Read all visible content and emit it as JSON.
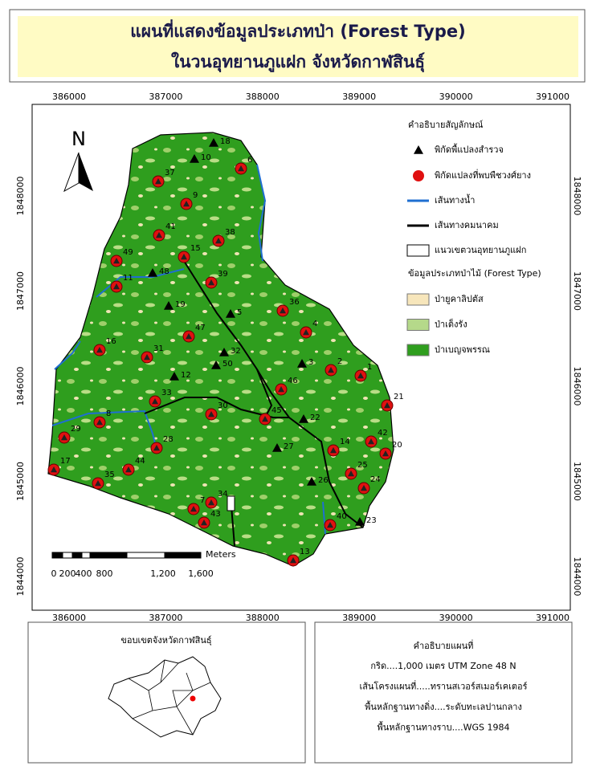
{
  "header": {
    "title": [
      "แผนที่แสดงข้อมูลประเภทป่า (Forest Type)",
      "ในวนอุทยานภูแฝก จังหวัดกาฬสินธุ์"
    ]
  },
  "map": {
    "x_labels": [
      386000,
      387000,
      388000,
      389000,
      390000,
      391000
    ],
    "y_labels": [
      1848000,
      1847000,
      1846000,
      1845000,
      1844000
    ],
    "north": "N",
    "scale": {
      "unit": "Meters",
      "labels": [
        "0",
        "200",
        "400",
        "800",
        "1,200",
        "1,600"
      ]
    },
    "survey_points": [
      "18",
      "10",
      "48",
      "19",
      "5",
      "32",
      "50",
      "12",
      "3",
      "22",
      "27",
      "26",
      "23"
    ],
    "found_points": [
      "6",
      "37",
      "9",
      "41",
      "38",
      "49",
      "15",
      "11",
      "39",
      "36",
      "4",
      "47",
      "16",
      "31",
      "2",
      "1",
      "46",
      "21",
      "33",
      "30",
      "45",
      "8",
      "29",
      "42",
      "28",
      "14",
      "20",
      "44",
      "25",
      "17",
      "35",
      "24",
      "7",
      "34",
      "43",
      "40",
      "13"
    ]
  },
  "legend": {
    "title": "คำอธิบายสัญลักษณ์",
    "items": [
      "พิกัดพื้แปลงสำรวจ",
      "พิกัดแปลงที่พบพืชวงศ์ยาง",
      "เส้นทางน้ำ",
      "เส้นทางคมนาคม",
      "แนวเขตวนอุทยานภูแฝก"
    ],
    "forest_title": "ข้อมูลประเภทป่าไม้ (Forest Type)",
    "forest_items": [
      "ป่ายูคาลิปตัส",
      "ป่าเต็งรัง",
      "ป่าเบญจพรรณ"
    ]
  },
  "inset": {
    "title": "ขอบเขตจังหวัดกาฬสินธุ์"
  },
  "notes": {
    "title": "คำอธิบายแผนที่",
    "lines": [
      "กริด....1,000 เมตร UTM Zone 48 N",
      "เส้นโครงแผนที่.....ทรานสเวอร์สเมอร์เคเตอร์",
      "พื้นหลักฐานทางดิ่ง....ระดับทะเลปานกลาง",
      "พื้นหลักฐานทางราบ....WGS 1984"
    ]
  }
}
